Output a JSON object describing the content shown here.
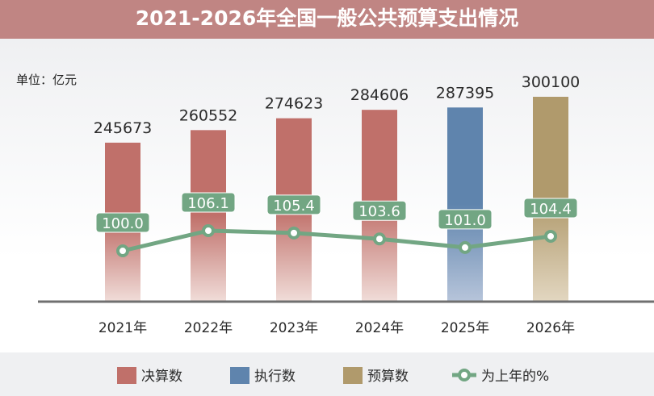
{
  "title": "2021-2026年全国一般公共预算支出情况",
  "unit_label": "单位：亿元",
  "colors": {
    "header": "#c08583",
    "final": "#c0706a",
    "execution": "#5f84ad",
    "budget": "#b09a6c",
    "line": "#72a683"
  },
  "chart_data": {
    "type": "bar+line",
    "categories": [
      "2021年",
      "2022年",
      "2023年",
      "2024年",
      "2025年",
      "2026年"
    ],
    "bar_types": [
      "final",
      "final",
      "final",
      "final",
      "execution",
      "budget"
    ],
    "values": [
      245673,
      260552,
      274623,
      284606,
      287395,
      300100
    ],
    "value_labels": [
      "245673",
      "260552",
      "274623",
      "284606",
      "287395",
      "300100"
    ],
    "pct": [
      100.0,
      106.1,
      105.4,
      103.6,
      101.0,
      104.4
    ],
    "pct_labels": [
      "100.0",
      "106.1",
      "105.4",
      "103.6",
      "101.0",
      "104.4"
    ],
    "legend": [
      {
        "key": "final",
        "label": "决算数"
      },
      {
        "key": "execution",
        "label": "执行数"
      },
      {
        "key": "budget",
        "label": "预算数"
      },
      {
        "key": "line",
        "label": "为上年的%"
      }
    ],
    "legend_placement": "bottom",
    "grid": false
  }
}
